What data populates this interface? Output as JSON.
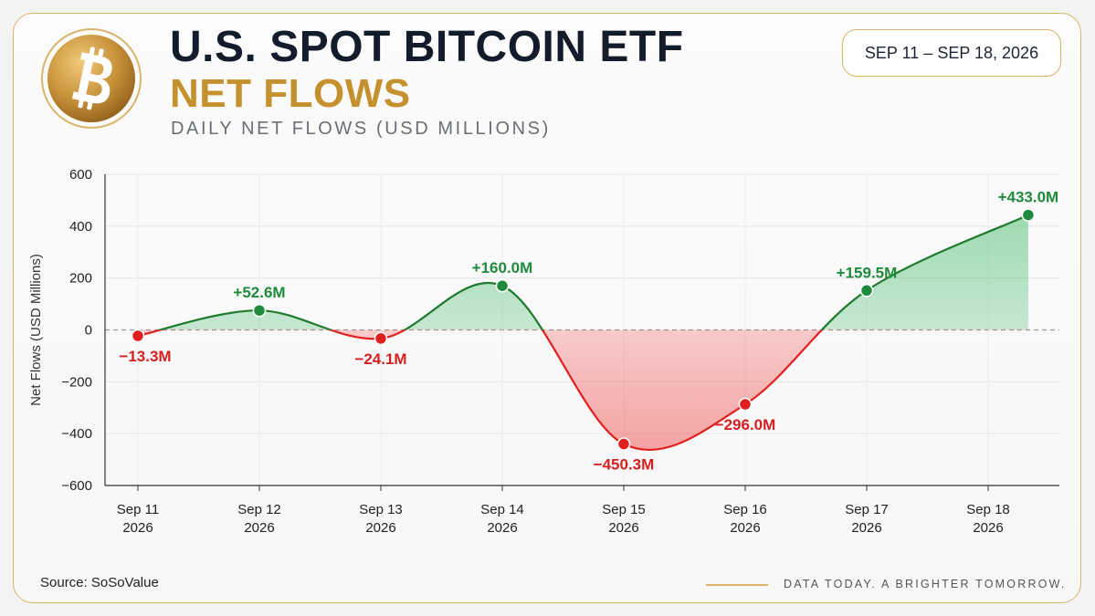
{
  "header": {
    "title_line1": "U.S. SPOT BITCOIN ETF",
    "title_line2": "NET FLOWS",
    "subtitle": "DAILY NET FLOWS (USD MILLIONS)",
    "date_range": "SEP 11 – SEP 18, 2026",
    "logo_icon": "bitcoin-logo-icon"
  },
  "footer": {
    "source": "Source: SoSoValue",
    "tagline": "DATA TODAY. A BRIGHTER TOMORROW."
  },
  "colors": {
    "positive": "#1f8a3c",
    "negative": "#e0201f",
    "gold": "#c4912e",
    "title": "#141c2c"
  },
  "chart_data": {
    "type": "area",
    "title": "U.S. SPOT BITCOIN ETF NET FLOWS",
    "subtitle": "DAILY NET FLOWS (USD MILLIONS)",
    "ylabel": "Net Flows (USD Millions)",
    "xlabel": "",
    "ylim": [
      -600,
      600
    ],
    "yticks": [
      {
        "value": 600,
        "label": "600"
      },
      {
        "value": 400,
        "label": "400"
      },
      {
        "value": 200,
        "label": "200"
      },
      {
        "value": 0,
        "label": "0"
      },
      {
        "value": -200,
        "label": "−200"
      },
      {
        "value": -400,
        "label": "−400"
      },
      {
        "value": -600,
        "label": "−600"
      }
    ],
    "grid": true,
    "zero_line": "dashed",
    "categories": [
      {
        "line1": "Sep 11",
        "line2": "2026"
      },
      {
        "line1": "Sep 12",
        "line2": "2026"
      },
      {
        "line1": "Sep 13",
        "line2": "2026"
      },
      {
        "line1": "Sep 14",
        "line2": "2026"
      },
      {
        "line1": "Sep 15",
        "line2": "2026"
      },
      {
        "line1": "Sep 16",
        "line2": "2026"
      },
      {
        "line1": "Sep 17",
        "line2": "2026"
      },
      {
        "line1": "Sep 18",
        "line2": "2026"
      }
    ],
    "points": [
      {
        "x": 0,
        "y": -23,
        "label": "−13.3M"
      },
      {
        "x": 1,
        "y": 75,
        "label": "+52.6M"
      },
      {
        "x": 2,
        "y": -33,
        "label": "−24.1M"
      },
      {
        "x": 3,
        "y": 170,
        "label": "+160.0M"
      },
      {
        "x": 4,
        "y": -440,
        "label": "−450.3M"
      },
      {
        "x": 5,
        "y": -287,
        "label": "−296.0M"
      },
      {
        "x": 6,
        "y": 152,
        "label": "+159.5M"
      },
      {
        "x": 7.33,
        "y": 443,
        "label": "+433.0M"
      }
    ]
  }
}
